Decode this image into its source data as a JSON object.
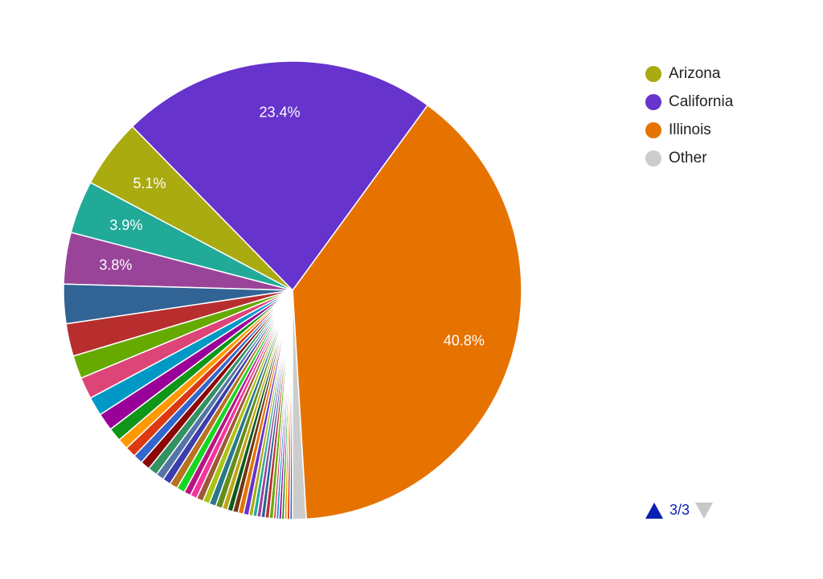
{
  "chart_data": {
    "type": "pie",
    "slices": [
      {
        "value": 40.8,
        "label": "40.8%",
        "color": "#e67300"
      },
      {
        "value": 23.4,
        "label": "23.4%",
        "color": "#6633cc"
      },
      {
        "value": 5.1,
        "label": "5.1%",
        "color": "#aaaa11"
      },
      {
        "value": 3.9,
        "label": "3.9%",
        "color": "#22aa99"
      },
      {
        "value": 3.8,
        "label": "3.8%",
        "color": "#994499"
      },
      {
        "value": 2.9,
        "label": "",
        "color": "#316395"
      },
      {
        "value": 2.4,
        "label": "",
        "color": "#b82e2e"
      },
      {
        "value": 1.7,
        "label": "",
        "color": "#66aa00"
      },
      {
        "value": 1.6,
        "label": "",
        "color": "#dd4477"
      },
      {
        "value": 1.4,
        "label": "",
        "color": "#0099c6"
      },
      {
        "value": 1.3,
        "label": "",
        "color": "#990099"
      },
      {
        "value": 1.0,
        "label": "",
        "color": "#109618"
      },
      {
        "value": 0.8,
        "label": "",
        "color": "#ff9900"
      },
      {
        "value": 0.8,
        "label": "",
        "color": "#dc3912"
      },
      {
        "value": 0.7,
        "label": "",
        "color": "#3366cc"
      },
      {
        "value": 0.7,
        "label": "",
        "color": "#8b0707"
      },
      {
        "value": 0.7,
        "label": "",
        "color": "#329262"
      },
      {
        "value": 0.6,
        "label": "",
        "color": "#5574a6"
      },
      {
        "value": 0.6,
        "label": "",
        "color": "#3b3eac"
      },
      {
        "value": 0.6,
        "label": "",
        "color": "#b77322"
      },
      {
        "value": 0.6,
        "label": "",
        "color": "#16d620"
      },
      {
        "value": 0.5,
        "label": "",
        "color": "#b91383"
      },
      {
        "value": 0.5,
        "label": "",
        "color": "#f4359e"
      },
      {
        "value": 0.5,
        "label": "",
        "color": "#9c5935"
      },
      {
        "value": 0.5,
        "label": "",
        "color": "#a9c413"
      },
      {
        "value": 0.5,
        "label": "",
        "color": "#2a778d"
      },
      {
        "value": 0.5,
        "label": "",
        "color": "#668d1c"
      },
      {
        "value": 0.4,
        "label": "",
        "color": "#bea413"
      },
      {
        "value": 0.4,
        "label": "",
        "color": "#0c5922"
      },
      {
        "value": 0.4,
        "label": "",
        "color": "#743411"
      },
      {
        "value": 0.4,
        "label": "",
        "color": "#e67300"
      },
      {
        "value": 0.4,
        "label": "",
        "color": "#6633cc"
      },
      {
        "value": 0.3,
        "label": "",
        "color": "#aaaa11"
      },
      {
        "value": 0.3,
        "label": "",
        "color": "#22aa99"
      },
      {
        "value": 0.3,
        "label": "",
        "color": "#994499"
      },
      {
        "value": 0.3,
        "label": "",
        "color": "#316395"
      },
      {
        "value": 0.3,
        "label": "",
        "color": "#b82e2e"
      },
      {
        "value": 0.3,
        "label": "",
        "color": "#66aa00"
      },
      {
        "value": 0.2,
        "label": "",
        "color": "#dd4477"
      },
      {
        "value": 0.2,
        "label": "",
        "color": "#0099c6"
      },
      {
        "value": 0.2,
        "label": "",
        "color": "#990099"
      },
      {
        "value": 0.2,
        "label": "",
        "color": "#109618"
      },
      {
        "value": 0.2,
        "label": "",
        "color": "#ff9900"
      },
      {
        "value": 0.2,
        "label": "",
        "color": "#dc3912"
      },
      {
        "value": 0.2,
        "label": "",
        "color": "#3366cc"
      },
      {
        "value": 1.0,
        "label": "",
        "color": "#cccccc"
      }
    ],
    "legend_position": "right",
    "legend": [
      {
        "name": "Arizona",
        "color": "#aaaa11"
      },
      {
        "name": "California",
        "color": "#6633cc"
      },
      {
        "name": "Illinois",
        "color": "#e67300"
      },
      {
        "name": "Other",
        "color": "#cccccc"
      }
    ]
  },
  "pager": {
    "label": "3/3"
  }
}
